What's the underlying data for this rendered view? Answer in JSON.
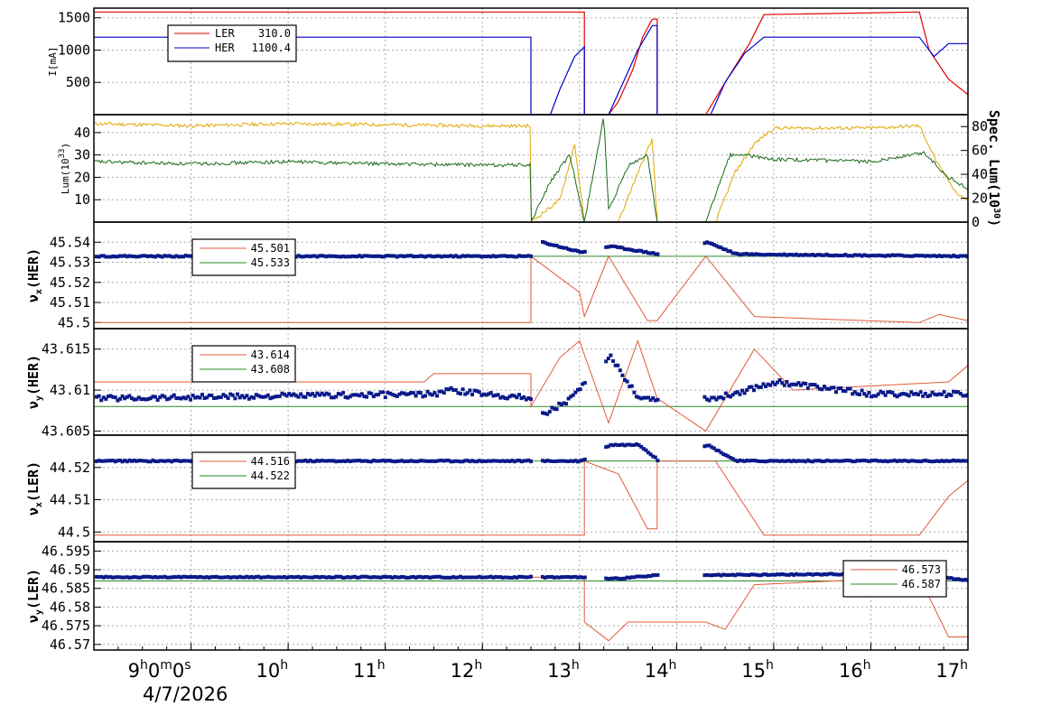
{
  "window": {
    "date_label": "4/7/2026"
  },
  "colors": {
    "ler": "#dd0000",
    "her": "#0000cc",
    "dots": "#0a1a8a",
    "model": "#e05a3a",
    "ref": "#2a8a2a",
    "lum_a": "#e0a800",
    "lum_b": "#1a6a1a",
    "grid": "#aaaaaa"
  },
  "chart_data": [
    {
      "type": "line",
      "title": "",
      "xlabel": "",
      "ylabel": "I[mA]",
      "x_ticks": [
        "9h0m0s",
        "10h",
        "11h",
        "12h",
        "13h",
        "14h",
        "15h",
        "16h",
        "17h"
      ],
      "xlim_hours": [
        8.0,
        17.0
      ],
      "ylim": [
        0,
        1650
      ],
      "yticks": [
        "500",
        "1000",
        "1500"
      ],
      "series": [
        {
          "name": "LER",
          "legend_value": "310.0",
          "points": [
            [
              8.0,
              1590
            ],
            [
              12.5,
              1590
            ],
            [
              13.05,
              1590
            ],
            [
              13.05,
              0
            ],
            [
              13.3,
              0
            ],
            [
              13.4,
              200
            ],
            [
              13.55,
              700
            ],
            [
              13.65,
              1200
            ],
            [
              13.75,
              1480
            ],
            [
              13.8,
              1480
            ],
            [
              13.8,
              0
            ],
            [
              14.3,
              0
            ],
            [
              14.5,
              500
            ],
            [
              14.75,
              1100
            ],
            [
              14.9,
              1550
            ],
            [
              16.5,
              1590
            ],
            [
              16.6,
              1000
            ],
            [
              16.8,
              550
            ],
            [
              17.0,
              310
            ]
          ]
        },
        {
          "name": "HER",
          "legend_value": "1100.4",
          "points": [
            [
              8.0,
              1200
            ],
            [
              12.5,
              1200
            ],
            [
              12.5,
              0
            ],
            [
              12.7,
              0
            ],
            [
              12.8,
              400
            ],
            [
              12.95,
              900
            ],
            [
              13.05,
              1050
            ],
            [
              13.05,
              0
            ],
            [
              13.3,
              0
            ],
            [
              13.45,
              500
            ],
            [
              13.6,
              1000
            ],
            [
              13.75,
              1380
            ],
            [
              13.8,
              1380
            ],
            [
              13.8,
              0
            ],
            [
              14.35,
              0
            ],
            [
              14.5,
              500
            ],
            [
              14.7,
              950
            ],
            [
              14.9,
              1200
            ],
            [
              16.5,
              1200
            ],
            [
              16.65,
              900
            ],
            [
              16.8,
              1100
            ],
            [
              17.0,
              1100
            ]
          ]
        }
      ]
    },
    {
      "type": "line",
      "title": "",
      "ylabel": "Lum(10^33)",
      "y2label": "Spec. Lum(10^30)",
      "ylim": [
        0,
        48
      ],
      "yticks": [
        "10",
        "20",
        "30",
        "40"
      ],
      "y2ticks": [
        "0",
        "20",
        "40",
        "60",
        "80"
      ],
      "series": [
        {
          "name": "",
          "points": [
            [
              8.0,
              44
            ],
            [
              9.0,
              43
            ],
            [
              10.0,
              44
            ],
            [
              11.0,
              43.5
            ],
            [
              12.0,
              43
            ],
            [
              12.5,
              43
            ],
            [
              12.5,
              0
            ],
            [
              12.8,
              10
            ],
            [
              12.95,
              35
            ],
            [
              13.05,
              0
            ],
            [
              13.25,
              0
            ],
            [
              13.4,
              0
            ],
            [
              13.6,
              22
            ],
            [
              13.75,
              37
            ],
            [
              13.8,
              0
            ],
            [
              14.4,
              0
            ],
            [
              14.6,
              22
            ],
            [
              14.8,
              35
            ],
            [
              15.0,
              42
            ],
            [
              16.0,
              42
            ],
            [
              16.5,
              43
            ],
            [
              16.7,
              25
            ],
            [
              16.9,
              12
            ],
            [
              17.0,
              10
            ]
          ]
        },
        {
          "name": "",
          "points": [
            [
              8.0,
              27
            ],
            [
              9.0,
              26
            ],
            [
              10.0,
              27
            ],
            [
              11.0,
              26
            ],
            [
              12.0,
              25.5
            ],
            [
              12.5,
              25.5
            ],
            [
              12.5,
              0
            ],
            [
              12.7,
              18
            ],
            [
              12.9,
              30
            ],
            [
              13.05,
              0
            ],
            [
              13.25,
              47
            ],
            [
              13.3,
              5
            ],
            [
              13.5,
              25
            ],
            [
              13.7,
              30
            ],
            [
              13.8,
              0
            ],
            [
              14.3,
              0
            ],
            [
              14.55,
              30
            ],
            [
              14.7,
              30
            ],
            [
              15.0,
              28
            ],
            [
              16.0,
              27
            ],
            [
              16.55,
              31
            ],
            [
              16.8,
              20
            ],
            [
              17.0,
              15
            ]
          ]
        }
      ]
    },
    {
      "type": "scatter",
      "ylabel": "νx(HER)",
      "ylim": [
        45.497,
        45.55
      ],
      "yticks": [
        "45.5",
        "45.51",
        "45.52",
        "45.53",
        "45.54",
        "45.55"
      ],
      "legend": [
        {
          "name": "",
          "value": "45.501"
        },
        {
          "name": "",
          "value": "45.533"
        }
      ],
      "reference": 45.533,
      "model_points": [
        [
          8.0,
          45.5
        ],
        [
          12.5,
          45.5
        ],
        [
          12.5,
          45.533
        ],
        [
          13.0,
          45.515
        ],
        [
          13.05,
          45.503
        ],
        [
          13.3,
          45.533
        ],
        [
          13.7,
          45.501
        ],
        [
          13.8,
          45.501
        ],
        [
          14.3,
          45.533
        ],
        [
          14.8,
          45.503
        ],
        [
          16.5,
          45.5
        ],
        [
          16.7,
          45.504
        ],
        [
          17.0,
          45.501
        ]
      ],
      "measured": [
        [
          8.0,
          45.533
        ],
        [
          12.5,
          45.533
        ],
        [
          12.6,
          45.54
        ],
        [
          13.0,
          45.535
        ],
        [
          13.3,
          45.538
        ],
        [
          13.8,
          45.534
        ],
        [
          14.3,
          45.54
        ],
        [
          14.6,
          45.534
        ],
        [
          17.0,
          45.533
        ]
      ]
    },
    {
      "type": "scatter",
      "ylabel": "νy(HER)",
      "ylim": [
        43.6045,
        43.6175
      ],
      "yticks": [
        "43.605",
        "43.61",
        "43.615"
      ],
      "legend": [
        {
          "name": "",
          "value": "43.614"
        },
        {
          "name": "",
          "value": "43.608"
        }
      ],
      "reference": 43.608,
      "model_points": [
        [
          8.0,
          43.611
        ],
        [
          11.4,
          43.611
        ],
        [
          11.5,
          43.612
        ],
        [
          12.5,
          43.612
        ],
        [
          12.5,
          43.608
        ],
        [
          12.8,
          43.614
        ],
        [
          13.0,
          43.616
        ],
        [
          13.3,
          43.606
        ],
        [
          13.6,
          43.616
        ],
        [
          13.8,
          43.609
        ],
        [
          14.3,
          43.605
        ],
        [
          14.8,
          43.615
        ],
        [
          15.2,
          43.61
        ],
        [
          16.8,
          43.611
        ],
        [
          17.0,
          43.613
        ]
      ],
      "measured": [
        [
          8.0,
          43.609
        ],
        [
          11.5,
          43.6095
        ],
        [
          11.6,
          43.61
        ],
        [
          12.5,
          43.609
        ],
        [
          12.6,
          43.607
        ],
        [
          12.9,
          43.609
        ],
        [
          13.3,
          43.614
        ],
        [
          13.6,
          43.609
        ],
        [
          14.4,
          43.609
        ],
        [
          15.0,
          43.611
        ],
        [
          16.0,
          43.6095
        ],
        [
          17.0,
          43.6095
        ]
      ]
    },
    {
      "type": "scatter",
      "ylabel": "νx(LER)",
      "ylim": [
        44.497,
        44.53
      ],
      "yticks": [
        "44.5",
        "44.51",
        "44.52",
        "44.53"
      ],
      "legend": [
        {
          "name": "",
          "value": "44.516"
        },
        {
          "name": "",
          "value": "44.522"
        }
      ],
      "reference": 44.522,
      "model_points": [
        [
          8.0,
          44.499
        ],
        [
          13.05,
          44.499
        ],
        [
          13.05,
          44.522
        ],
        [
          13.4,
          44.518
        ],
        [
          13.7,
          44.501
        ],
        [
          13.8,
          44.501
        ],
        [
          13.8,
          44.522
        ],
        [
          14.4,
          44.522
        ],
        [
          14.9,
          44.499
        ],
        [
          16.5,
          44.499
        ],
        [
          16.8,
          44.511
        ],
        [
          17.0,
          44.516
        ]
      ],
      "measured": [
        [
          8.0,
          44.522
        ],
        [
          13.0,
          44.522
        ],
        [
          13.3,
          44.527
        ],
        [
          13.6,
          44.527
        ],
        [
          13.8,
          44.522
        ],
        [
          14.3,
          44.527
        ],
        [
          14.6,
          44.522
        ],
        [
          17.0,
          44.522
        ]
      ]
    },
    {
      "type": "scatter",
      "ylabel": "νy(LER)",
      "ylim": [
        46.5685,
        46.5975
      ],
      "yticks": [
        "46.57",
        "46.575",
        "46.58",
        "46.585",
        "46.59",
        "46.595"
      ],
      "legend": [
        {
          "name": "",
          "value": "46.573"
        },
        {
          "name": "",
          "value": "46.587"
        }
      ],
      "reference": 46.587,
      "model_points": [
        [
          8.0,
          46.588
        ],
        [
          13.05,
          46.588
        ],
        [
          13.05,
          46.576
        ],
        [
          13.3,
          46.571
        ],
        [
          13.5,
          46.576
        ],
        [
          14.3,
          46.576
        ],
        [
          14.5,
          46.574
        ],
        [
          14.8,
          46.586
        ],
        [
          16.5,
          46.588
        ],
        [
          16.8,
          46.572
        ],
        [
          17.0,
          46.572
        ]
      ],
      "measured": [
        [
          8.0,
          46.588
        ],
        [
          13.0,
          46.588
        ],
        [
          13.3,
          46.5875
        ],
        [
          13.8,
          46.5885
        ],
        [
          14.3,
          46.5885
        ],
        [
          16.5,
          46.589
        ],
        [
          17.0,
          46.587
        ]
      ]
    }
  ]
}
